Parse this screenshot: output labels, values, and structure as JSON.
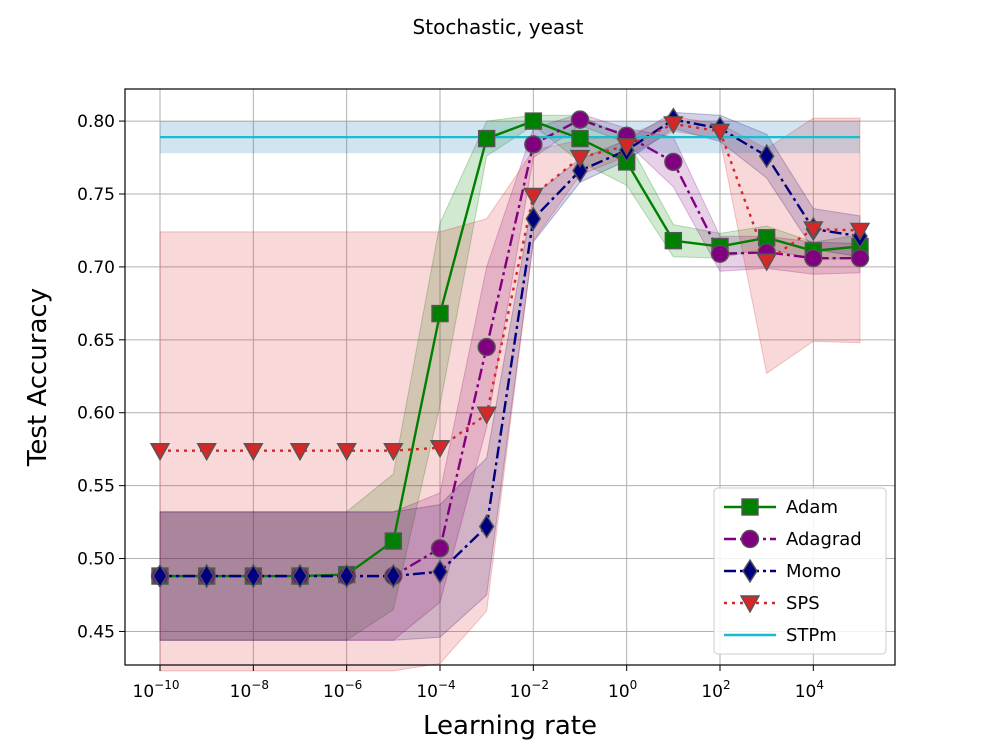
{
  "chart_data": {
    "type": "line",
    "title": "Stochastic, yeast",
    "xlabel": "Learning rate",
    "ylabel": "Test Accuracy",
    "xscale": "log",
    "xlim_log10": [
      -10.75,
      5.75
    ],
    "ylim": [
      0.427,
      0.822
    ],
    "grid": true,
    "legend_position": "lower-right",
    "x_ticks": [
      {
        "base": "10",
        "exp": "−10",
        "log10": -10
      },
      {
        "base": "10",
        "exp": "−8",
        "log10": -8
      },
      {
        "base": "10",
        "exp": "−6",
        "log10": -6
      },
      {
        "base": "10",
        "exp": "−4",
        "log10": -4
      },
      {
        "base": "10",
        "exp": "−2",
        "log10": -2
      },
      {
        "base": "10",
        "exp": "0",
        "log10": 0
      },
      {
        "base": "10",
        "exp": "2",
        "log10": 2
      },
      {
        "base": "10",
        "exp": "4",
        "log10": 4
      }
    ],
    "y_ticks": [
      {
        "label": "0.45",
        "value": 0.45
      },
      {
        "label": "0.50",
        "value": 0.5
      },
      {
        "label": "0.55",
        "value": 0.55
      },
      {
        "label": "0.60",
        "value": 0.6
      },
      {
        "label": "0.65",
        "value": 0.65
      },
      {
        "label": "0.70",
        "value": 0.7
      },
      {
        "label": "0.75",
        "value": 0.75
      },
      {
        "label": "0.80",
        "value": 0.8
      }
    ],
    "x_log10": [
      -10,
      -9,
      -8,
      -7,
      -6,
      -5,
      -4,
      -3,
      -2,
      -1,
      0,
      1,
      2,
      3,
      4,
      5
    ],
    "series": [
      {
        "name": "Adam",
        "color": "#008000",
        "marker": "square",
        "linestyle": "solid",
        "values": [
          0.488,
          0.488,
          0.488,
          0.488,
          0.489,
          0.512,
          0.668,
          0.788,
          0.8,
          0.788,
          0.772,
          0.718,
          0.714,
          0.72,
          0.711,
          0.714
        ],
        "lower": [
          0.444,
          0.444,
          0.444,
          0.444,
          0.444,
          0.465,
          0.605,
          0.776,
          0.797,
          0.772,
          0.756,
          0.707,
          0.706,
          0.713,
          0.705,
          0.706
        ],
        "upper": [
          0.532,
          0.532,
          0.532,
          0.532,
          0.532,
          0.558,
          0.73,
          0.8,
          0.804,
          0.804,
          0.788,
          0.729,
          0.723,
          0.728,
          0.717,
          0.722
        ]
      },
      {
        "name": "Adagrad",
        "color": "#800080",
        "marker": "circle",
        "linestyle": "dashdot",
        "values": [
          0.488,
          0.488,
          0.488,
          0.488,
          0.488,
          0.488,
          0.507,
          0.645,
          0.784,
          0.801,
          0.79,
          0.772,
          0.709,
          0.71,
          0.706,
          0.706
        ],
        "lower": [
          0.444,
          0.444,
          0.444,
          0.444,
          0.444,
          0.444,
          0.47,
          0.59,
          0.775,
          0.797,
          0.785,
          0.755,
          0.697,
          0.699,
          0.695,
          0.696
        ],
        "upper": [
          0.532,
          0.532,
          0.532,
          0.532,
          0.532,
          0.532,
          0.545,
          0.7,
          0.795,
          0.805,
          0.795,
          0.789,
          0.721,
          0.721,
          0.717,
          0.716
        ]
      },
      {
        "name": "Momo",
        "color": "#00007f",
        "marker": "diamond",
        "linestyle": "dashdot",
        "values": [
          0.488,
          0.488,
          0.488,
          0.488,
          0.488,
          0.488,
          0.491,
          0.522,
          0.733,
          0.766,
          0.78,
          0.801,
          0.795,
          0.776,
          0.726,
          0.721
        ],
        "lower": [
          0.444,
          0.444,
          0.444,
          0.444,
          0.444,
          0.444,
          0.446,
          0.475,
          0.717,
          0.758,
          0.773,
          0.795,
          0.786,
          0.761,
          0.712,
          0.707
        ],
        "upper": [
          0.532,
          0.532,
          0.532,
          0.532,
          0.532,
          0.532,
          0.537,
          0.569,
          0.749,
          0.774,
          0.787,
          0.806,
          0.804,
          0.791,
          0.74,
          0.735
        ]
      },
      {
        "name": "SPS",
        "color": "#d62728",
        "marker": "triangle-down",
        "linestyle": "dotted",
        "values": [
          0.574,
          0.574,
          0.574,
          0.574,
          0.574,
          0.574,
          0.576,
          0.599,
          0.749,
          0.775,
          0.783,
          0.798,
          0.793,
          0.704,
          0.726,
          0.725
        ],
        "lower": [
          0.423,
          0.423,
          0.423,
          0.423,
          0.423,
          0.423,
          0.428,
          0.464,
          0.718,
          0.763,
          0.776,
          0.793,
          0.788,
          0.627,
          0.649,
          0.648
        ],
        "upper": [
          0.724,
          0.724,
          0.724,
          0.724,
          0.724,
          0.724,
          0.724,
          0.733,
          0.78,
          0.787,
          0.79,
          0.803,
          0.798,
          0.781,
          0.802,
          0.802
        ]
      },
      {
        "name": "STPm",
        "color": "#17becf",
        "marker": "none",
        "linestyle": "solid",
        "constant": 0.789,
        "band": [
          0.778,
          0.8
        ],
        "band_color": "#1f77b4"
      }
    ]
  }
}
